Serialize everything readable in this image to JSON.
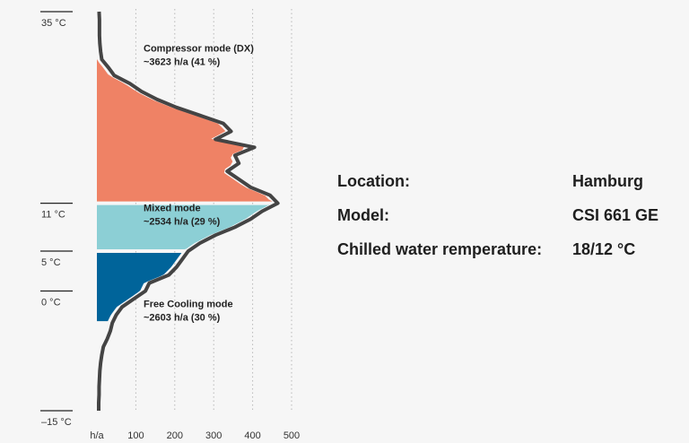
{
  "chart_data": {
    "type": "area",
    "title": "",
    "xlabel": "h/a",
    "ylabel": "",
    "x_ticks": [
      100,
      200,
      300,
      400,
      500
    ],
    "xlim": [
      0,
      500
    ],
    "ylim": [
      -15,
      35
    ],
    "y_ticks": [
      {
        "value": 35,
        "label": "35 °C"
      },
      {
        "value": 11,
        "label": "11 °C"
      },
      {
        "value": 5,
        "label": "5 °C"
      },
      {
        "value": 0,
        "label": "0 °C"
      },
      {
        "value": -15,
        "label": "–15 °C"
      }
    ],
    "grid": true,
    "distribution": {
      "temperature": [
        35,
        34,
        33,
        32,
        31,
        30,
        29,
        28,
        27,
        26,
        25,
        24,
        23,
        22,
        21,
        20,
        19,
        18,
        17,
        16,
        15,
        14,
        13,
        12,
        11,
        10,
        9,
        8,
        7,
        6,
        5,
        4,
        3,
        2,
        1,
        0,
        -1,
        -2,
        -3,
        -4,
        -5,
        -6,
        -7,
        -8,
        -9,
        -10,
        -11,
        -12,
        -13,
        -14,
        -15
      ],
      "hours": [
        1,
        2,
        2,
        2,
        3,
        5,
        8,
        25,
        40,
        80,
        110,
        150,
        200,
        260,
        320,
        340,
        300,
        400,
        350,
        360,
        330,
        360,
        390,
        440,
        460,
        420,
        390,
        350,
        300,
        260,
        230,
        215,
        200,
        180,
        130,
        120,
        90,
        60,
        45,
        35,
        30,
        22,
        12,
        8,
        5,
        3,
        2,
        1,
        1,
        0,
        0
      ]
    },
    "series": [
      {
        "name": "Compressor mode (DX)",
        "hours_label": "~3623 h/a (41 %)",
        "t_min": 11,
        "t_max": 30,
        "color": "#ef8265"
      },
      {
        "name": "Mixed mode",
        "hours_label": "~2534 h/a (29 %)",
        "t_min": 5,
        "t_max": 11,
        "color": "#8ccfd5"
      },
      {
        "name": "Free Cooling mode",
        "hours_label": "~2603 h/a (30 %)",
        "t_min": -4,
        "t_max": 5,
        "color": "#00649a"
      }
    ],
    "annotations": [
      {
        "series": 0,
        "temperature": 30
      },
      {
        "series": 1,
        "temperature": 10
      },
      {
        "series": 2,
        "temperature": -2
      }
    ]
  },
  "info": {
    "rows": [
      {
        "label": "Location:",
        "value": "Hamburg"
      },
      {
        "label": "Model:",
        "value": "CSI 661 GE"
      },
      {
        "label": "Chilled water remperature:",
        "value": "18/12 °C"
      }
    ]
  },
  "colors": {
    "background": "#f6f6f6",
    "outline": "#444444",
    "grid": "#b8b8b8",
    "tick": "#222222",
    "text": "#1f1f1f"
  }
}
